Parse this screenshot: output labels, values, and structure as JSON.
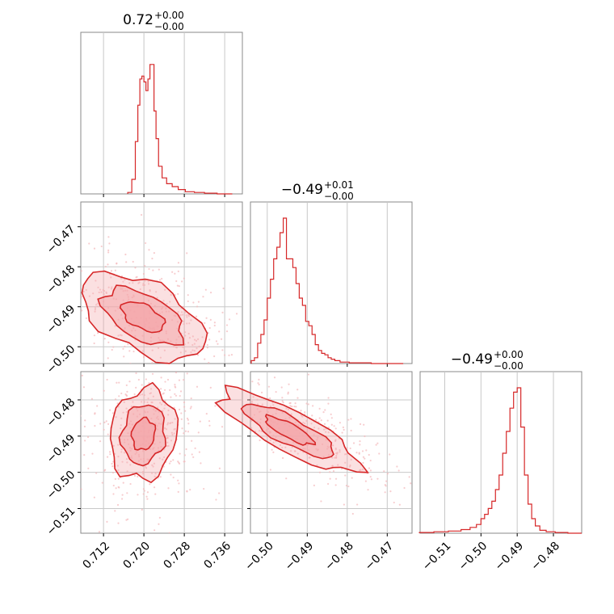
{
  "chart_data": {
    "type": "corner",
    "color": "#d62728",
    "fill_color": "#f4a6aa",
    "scatter_color": "#f4b8bb",
    "grid": true,
    "parameters": [
      {
        "range": [
          0.7075,
          0.7395
        ],
        "ticks": [
          0.712,
          0.72,
          0.728,
          0.736
        ],
        "tick_labels": [
          "0.712",
          "0.720",
          "0.728",
          "0.736"
        ],
        "title_main": "0.72",
        "title_plus": "+0.00",
        "title_minus": "−0.00",
        "histogram": [
          {
            "x": 0.7172,
            "y": 0.01
          },
          {
            "x": 0.718,
            "y": 0.1
          },
          {
            "x": 0.7186,
            "y": 0.36
          },
          {
            "x": 0.719,
            "y": 0.61
          },
          {
            "x": 0.7194,
            "y": 0.79
          },
          {
            "x": 0.7198,
            "y": 0.81
          },
          {
            "x": 0.7202,
            "y": 0.77
          },
          {
            "x": 0.7206,
            "y": 0.71
          },
          {
            "x": 0.721,
            "y": 0.79
          },
          {
            "x": 0.7214,
            "y": 0.89
          },
          {
            "x": 0.7218,
            "y": 0.89
          },
          {
            "x": 0.7222,
            "y": 0.57
          },
          {
            "x": 0.7226,
            "y": 0.38
          },
          {
            "x": 0.7232,
            "y": 0.19
          },
          {
            "x": 0.724,
            "y": 0.11
          },
          {
            "x": 0.725,
            "y": 0.07
          },
          {
            "x": 0.7262,
            "y": 0.05
          },
          {
            "x": 0.7274,
            "y": 0.03
          },
          {
            "x": 0.729,
            "y": 0.015
          },
          {
            "x": 0.731,
            "y": 0.01
          },
          {
            "x": 0.733,
            "y": 0.005
          },
          {
            "x": 0.736,
            "y": 0.0
          }
        ]
      },
      {
        "range": [
          -0.5042,
          -0.4638
        ],
        "ticks": [
          -0.5,
          -0.49,
          -0.48,
          -0.47
        ],
        "tick_labels": [
          "−0.50",
          "−0.49",
          "−0.48",
          "−0.47"
        ],
        "title_main": "−0.49",
        "title_plus": "+0.01",
        "title_minus": "−0.00",
        "histogram": [
          {
            "x": -0.5036,
            "y": 0.02
          },
          {
            "x": -0.5028,
            "y": 0.04
          },
          {
            "x": -0.502,
            "y": 0.14
          },
          {
            "x": -0.5012,
            "y": 0.2
          },
          {
            "x": -0.5004,
            "y": 0.3
          },
          {
            "x": -0.4996,
            "y": 0.45
          },
          {
            "x": -0.4988,
            "y": 0.58
          },
          {
            "x": -0.498,
            "y": 0.72
          },
          {
            "x": -0.4972,
            "y": 0.8
          },
          {
            "x": -0.4964,
            "y": 0.9
          },
          {
            "x": -0.4956,
            "y": 1.0
          },
          {
            "x": -0.4948,
            "y": 0.72
          },
          {
            "x": -0.494,
            "y": 0.72
          },
          {
            "x": -0.4932,
            "y": 0.66
          },
          {
            "x": -0.4924,
            "y": 0.55
          },
          {
            "x": -0.4916,
            "y": 0.45
          },
          {
            "x": -0.4908,
            "y": 0.4
          },
          {
            "x": -0.49,
            "y": 0.29
          },
          {
            "x": -0.4892,
            "y": 0.26
          },
          {
            "x": -0.4884,
            "y": 0.2
          },
          {
            "x": -0.4876,
            "y": 0.13
          },
          {
            "x": -0.4868,
            "y": 0.09
          },
          {
            "x": -0.486,
            "y": 0.07
          },
          {
            "x": -0.4852,
            "y": 0.06
          },
          {
            "x": -0.4844,
            "y": 0.04
          },
          {
            "x": -0.4836,
            "y": 0.03
          },
          {
            "x": -0.4826,
            "y": 0.02
          },
          {
            "x": -0.481,
            "y": 0.01
          },
          {
            "x": -0.478,
            "y": 0.005
          },
          {
            "x": -0.47,
            "y": 0.0
          }
        ]
      },
      {
        "range": [
          -0.5168,
          -0.4722
        ],
        "ticks": [
          -0.51,
          -0.5,
          -0.49,
          -0.48
        ],
        "tick_labels": [
          "−0.51",
          "−0.50",
          "−0.49",
          "−0.48"
        ],
        "title_main": "−0.49",
        "title_plus": "+0.00",
        "title_minus": "−0.00",
        "histogram": [
          {
            "x": -0.515,
            "y": 0.005
          },
          {
            "x": -0.511,
            "y": 0.01
          },
          {
            "x": -0.507,
            "y": 0.015
          },
          {
            "x": -0.504,
            "y": 0.025
          },
          {
            "x": -0.502,
            "y": 0.04
          },
          {
            "x": -0.5005,
            "y": 0.06
          },
          {
            "x": -0.4995,
            "y": 0.1
          },
          {
            "x": -0.4985,
            "y": 0.13
          },
          {
            "x": -0.4975,
            "y": 0.17
          },
          {
            "x": -0.4965,
            "y": 0.22
          },
          {
            "x": -0.4955,
            "y": 0.3
          },
          {
            "x": -0.4945,
            "y": 0.4
          },
          {
            "x": -0.4935,
            "y": 0.55
          },
          {
            "x": -0.4925,
            "y": 0.7
          },
          {
            "x": -0.4915,
            "y": 0.86
          },
          {
            "x": -0.4905,
            "y": 0.97
          },
          {
            "x": -0.4895,
            "y": 1.0
          },
          {
            "x": -0.4885,
            "y": 0.73
          },
          {
            "x": -0.4875,
            "y": 0.4
          },
          {
            "x": -0.4865,
            "y": 0.2
          },
          {
            "x": -0.4855,
            "y": 0.1
          },
          {
            "x": -0.4845,
            "y": 0.05
          },
          {
            "x": -0.483,
            "y": 0.02
          },
          {
            "x": -0.481,
            "y": 0.01
          },
          {
            "x": -0.478,
            "y": 0.005
          },
          {
            "x": -0.474,
            "y": 0.0
          }
        ]
      }
    ],
    "pairs": [
      {
        "x_param": 0,
        "y_param": 1,
        "center": [
          0.7198,
          -0.4925
        ],
        "rx": 0.0026,
        "ry": 0.0065,
        "angle_deg": 62
      },
      {
        "x_param": 0,
        "y_param": 2,
        "center": [
          0.7199,
          -0.4895
        ],
        "rx": 0.0035,
        "ry": 0.0035,
        "angle_deg": 80
      },
      {
        "x_param": 1,
        "y_param": 2,
        "center": [
          -0.4945,
          -0.4885
        ],
        "rx": 0.0075,
        "ry": 0.0022,
        "angle_deg": -28
      }
    ]
  }
}
